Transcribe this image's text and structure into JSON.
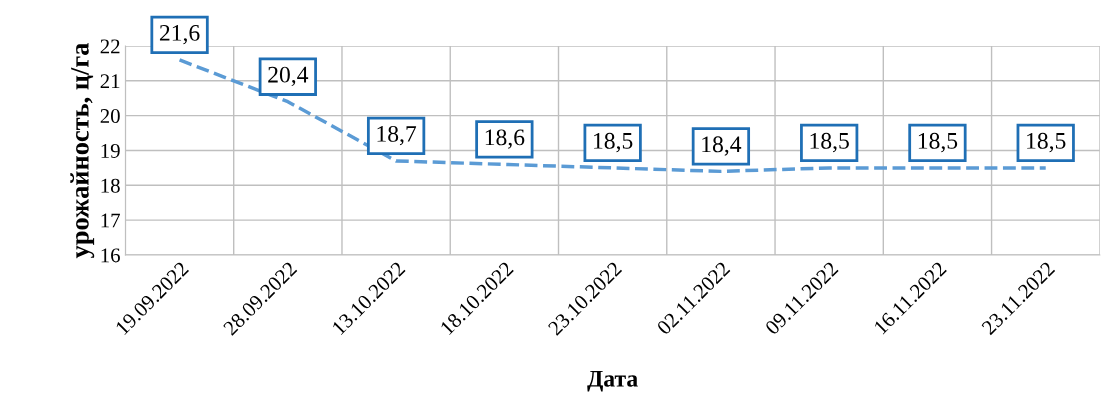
{
  "chart_data": {
    "type": "line",
    "xlabel": "Дата",
    "ylabel": "урожайность, ц/га",
    "categories": [
      "19.09.2022",
      "28.09.2022",
      "13.10.2022",
      "18.10.2022",
      "23.10.2022",
      "02.11.2022",
      "09.11.2022",
      "16.11.2022",
      "23.11.2022"
    ],
    "series": [
      {
        "color": "#5b9bd5",
        "values": [
          21.6,
          20.4,
          18.7,
          18.6,
          18.5,
          18.4,
          18.5,
          18.5,
          18.5
        ],
        "value_labels": [
          "21,6",
          "20,4",
          "18,7",
          "18,6",
          "18,5",
          "18,4",
          "18,5",
          "18,5",
          "18,5"
        ]
      }
    ],
    "ylim": [
      16,
      22
    ],
    "yticks": [
      16,
      17,
      18,
      19,
      20,
      21,
      22
    ],
    "grid": true,
    "line_style": "dashed",
    "marker": "none",
    "legend": false
  }
}
